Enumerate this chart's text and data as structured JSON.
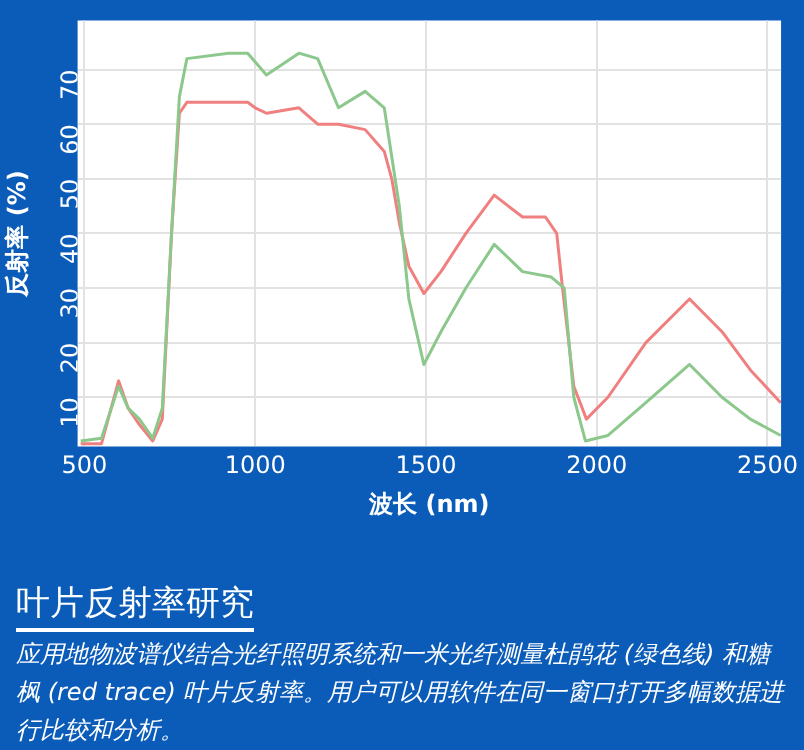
{
  "chart_data": {
    "type": "line",
    "xlabel": "波长 (nm)",
    "ylabel": "反射率 (%)",
    "title": "叶片反射率研究",
    "annotations": [
      "应用地物波谱仪结合光纤照明系统和一米光纤测量杜鹃花 (绿色线) 和糖枫 (red trace) 叶片反射率。用户可以用软件在同一窗口打开多幅数据进行比较和分析。"
    ],
    "xlim": [
      480,
      2540
    ],
    "xticks": [
      500,
      1000,
      1500,
      2000,
      2500
    ],
    "ylim": [
      1,
      79
    ],
    "yticks": [
      10,
      20,
      30,
      40,
      50,
      60,
      70
    ],
    "grid": true,
    "legend": false,
    "marker": "none",
    "line_style": "solid",
    "series": [
      {
        "color": "#8cc88c",
        "x": [
          489,
          550,
          600,
          628,
          661,
          700,
          728,
          755,
          778,
          800,
          922,
          978,
          1033,
          1128,
          1183,
          1244,
          1322,
          1378,
          1422,
          1450,
          1494,
          1544,
          1617,
          1700,
          1783,
          1867,
          1905,
          1933,
          1967,
          2033,
          2144,
          2272,
          2367,
          2450,
          2539
        ],
        "values": [
          2,
          2.5,
          12,
          8,
          6,
          2.5,
          8,
          40,
          65,
          72,
          73,
          73,
          69,
          73,
          72,
          63,
          66,
          63,
          45,
          28,
          16,
          22,
          30,
          38,
          33,
          32,
          30,
          10,
          2,
          3,
          9,
          16,
          10,
          6,
          3
        ]
      },
      {
        "color": "#f08080",
        "x": [
          489,
          550,
          600,
          628,
          661,
          700,
          728,
          755,
          778,
          800,
          978,
          1000,
          1033,
          1128,
          1183,
          1244,
          1322,
          1378,
          1400,
          1422,
          1450,
          1494,
          1544,
          1617,
          1700,
          1783,
          1850,
          1883,
          1900,
          1933,
          1970,
          2033,
          2144,
          2272,
          2367,
          2450,
          2539
        ],
        "values": [
          1.5,
          1.5,
          13,
          8,
          5,
          2,
          6,
          40,
          62,
          64,
          64,
          63,
          62,
          63,
          60,
          60,
          59,
          55,
          50,
          42,
          34,
          29,
          33,
          40,
          47,
          43,
          43,
          40,
          30,
          12,
          6,
          10,
          20,
          28,
          22,
          15,
          9
        ]
      }
    ]
  }
}
